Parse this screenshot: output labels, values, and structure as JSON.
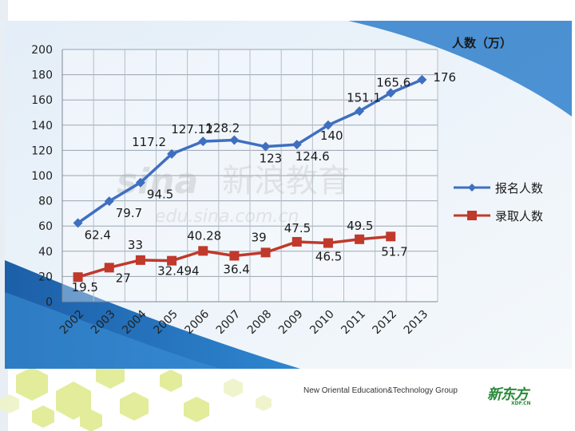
{
  "footer": {
    "company": "New Oriental Education&Technology Group",
    "logo": "新东方",
    "logo_sub": "XDF.CN"
  },
  "watermark": {
    "brand": "sina",
    "brand_cn": "新浪教育",
    "url": "edu.sina.com.cn"
  },
  "colors": {
    "series_registered": "#3f6fc0",
    "series_admitted": "#c0392b",
    "panel_bg": "#e9f1f9",
    "accent_blue": "#1f6fbf",
    "hex_yellow": "#d9ea7a"
  },
  "chart_data": {
    "type": "line",
    "title": "",
    "ylabel": "人数（万）",
    "xlabel": "",
    "categories": [
      "2002",
      "2003",
      "2004",
      "2005",
      "2006",
      "2007",
      "2008",
      "2009",
      "2010",
      "2011",
      "2012",
      "2013"
    ],
    "ylim": [
      0,
      200
    ],
    "yticks": [
      0,
      20,
      40,
      60,
      80,
      100,
      120,
      140,
      160,
      180,
      200
    ],
    "grid": true,
    "legend_position": "right",
    "series": [
      {
        "name": "报名人数",
        "marker": "diamond",
        "x": [
          "2002",
          "2003",
          "2004",
          "2005",
          "2006",
          "2007",
          "2008",
          "2009",
          "2010",
          "2011",
          "2012",
          "2013"
        ],
        "values": [
          62.4,
          79.7,
          94.5,
          117.2,
          127.12,
          128.2,
          123,
          124.6,
          140,
          151.1,
          165.6,
          176
        ],
        "labels": [
          "62.4",
          "79.7",
          "94.5",
          "117.2",
          "127.12",
          "128.2",
          "123",
          "124.6",
          "140",
          "151.1",
          "165.6",
          "176"
        ]
      },
      {
        "name": "录取人数",
        "marker": "square",
        "x": [
          "2002",
          "2003",
          "2004",
          "2005",
          "2006",
          "2007",
          "2008",
          "2009",
          "2010",
          "2011",
          "2012"
        ],
        "values": [
          19.5,
          27,
          33,
          32.494,
          40.28,
          36.4,
          39,
          47.5,
          46.5,
          49.5,
          51.7
        ],
        "labels": [
          "19.5",
          "27",
          "33",
          "32.494",
          "40.28",
          "36.4",
          "39",
          "47.5",
          "46.5",
          "49.5",
          "51.7"
        ]
      }
    ]
  }
}
